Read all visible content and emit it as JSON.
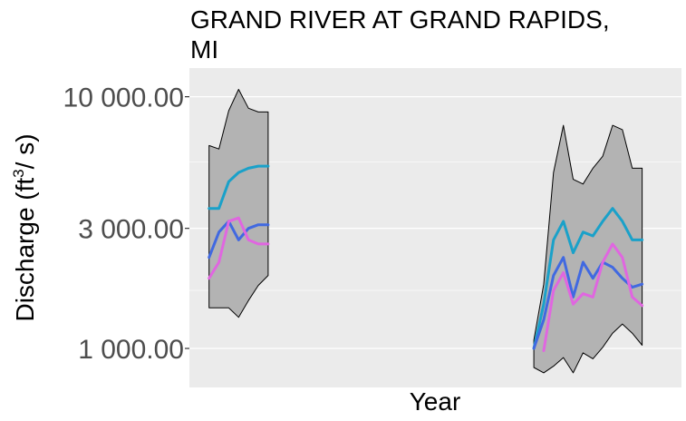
{
  "chart_data": {
    "type": "line",
    "title_lines": [
      "GRAND RIVER AT GRAND RAPIDS,",
      "MI"
    ],
    "xlabel": "Year",
    "ylabel": {
      "prefix": "Discharge (ft",
      "sup": "3",
      "suffix": "/ s)"
    },
    "y_scale": "log",
    "ylim": [
      700,
      13000
    ],
    "xlim": [
      0,
      50
    ],
    "grid": true,
    "y_ticks": [
      {
        "value": 1000,
        "label": "1 000.00"
      },
      {
        "value": 3000,
        "label": "3 000.00"
      },
      {
        "value": 10000,
        "label": "10 000.00"
      }
    ],
    "y_minor_ticks": [
      1700,
      5500
    ],
    "colors": {
      "panel_bg": "#ebebeb",
      "grid": "#ffffff",
      "band_fill": "#b3b3b3",
      "band_stroke": "#000000",
      "teal": "#1aa1c9",
      "blue": "#4169e1",
      "magenta": "#e066e0"
    },
    "ribbon": {
      "name": "range",
      "segments": [
        {
          "x": [
            2,
            3,
            4,
            5,
            6,
            7,
            8
          ],
          "upper": [
            6400,
            6200,
            8800,
            10700,
            9000,
            8700,
            null
          ],
          "lower": [
            1450,
            1450,
            1450,
            1330,
            1550,
            1780,
            1950
          ]
        },
        {
          "x": [
            35,
            36,
            37,
            38,
            39,
            40,
            41,
            42,
            43,
            44,
            45,
            46
          ],
          "upper": [
            1080,
            1800,
            5000,
            7700,
            4700,
            4500,
            5200,
            5800,
            7700,
            7400,
            5200,
            null
          ],
          "lower": [
            840,
            800,
            850,
            920,
            800,
            960,
            910,
            1010,
            1150,
            1250,
            1150,
            1030
          ]
        }
      ],
      "upper_end": [
        {
          "segment": 0,
          "x": 8,
          "value": 8700
        },
        {
          "segment": 1,
          "x": 46,
          "value": 5200
        }
      ]
    },
    "series": [
      {
        "name": "teal",
        "color": "teal",
        "segments": [
          {
            "x": [
              2,
              3,
              4,
              5,
              6,
              7,
              8
            ],
            "values": [
              3600,
              3600,
              4600,
              5000,
              5200,
              5300,
              5300
            ]
          },
          {
            "x": [
              35,
              36,
              37,
              38,
              39,
              40,
              41,
              42,
              43,
              44,
              45,
              46
            ],
            "values": [
              1000,
              1500,
              2700,
              3200,
              2400,
              2900,
              2800,
              3200,
              3600,
              3200,
              2700,
              null
            ]
          }
        ]
      },
      {
        "name": "blue",
        "color": "blue",
        "segments": [
          {
            "x": [
              2,
              3,
              4,
              5,
              6,
              7,
              8
            ],
            "values": [
              2300,
              2900,
              3200,
              2700,
              3000,
              3100,
              3100
            ]
          },
          {
            "x": [
              35,
              36,
              37,
              38,
              39,
              40,
              41,
              42,
              43,
              44,
              45,
              46
            ],
            "values": [
              1000,
              1300,
              1950,
              2300,
              1600,
              2200,
              1900,
              2200,
              2100,
              1900,
              1750,
              1800
            ]
          }
        ]
      },
      {
        "name": "magenta",
        "color": "magenta",
        "segments": [
          {
            "x": [
              2,
              3,
              4,
              5,
              6,
              7,
              8
            ],
            "values": [
              1900,
              2200,
              3200,
              3300,
              2700,
              2600,
              2600
            ]
          },
          {
            "x": [
              36,
              37,
              38,
              39,
              40,
              41,
              42,
              43,
              44,
              45,
              46
            ],
            "values": [
              980,
              1700,
              2000,
              1500,
              1650,
              1600,
              2200,
              2600,
              2300,
              1600,
              null
            ]
          }
        ]
      }
    ],
    "series_end": [
      {
        "series": 0,
        "segment": 1,
        "x": 46,
        "value": 2700
      },
      {
        "series": 2,
        "segment": 1,
        "x": 46,
        "value": 1480
      }
    ]
  }
}
